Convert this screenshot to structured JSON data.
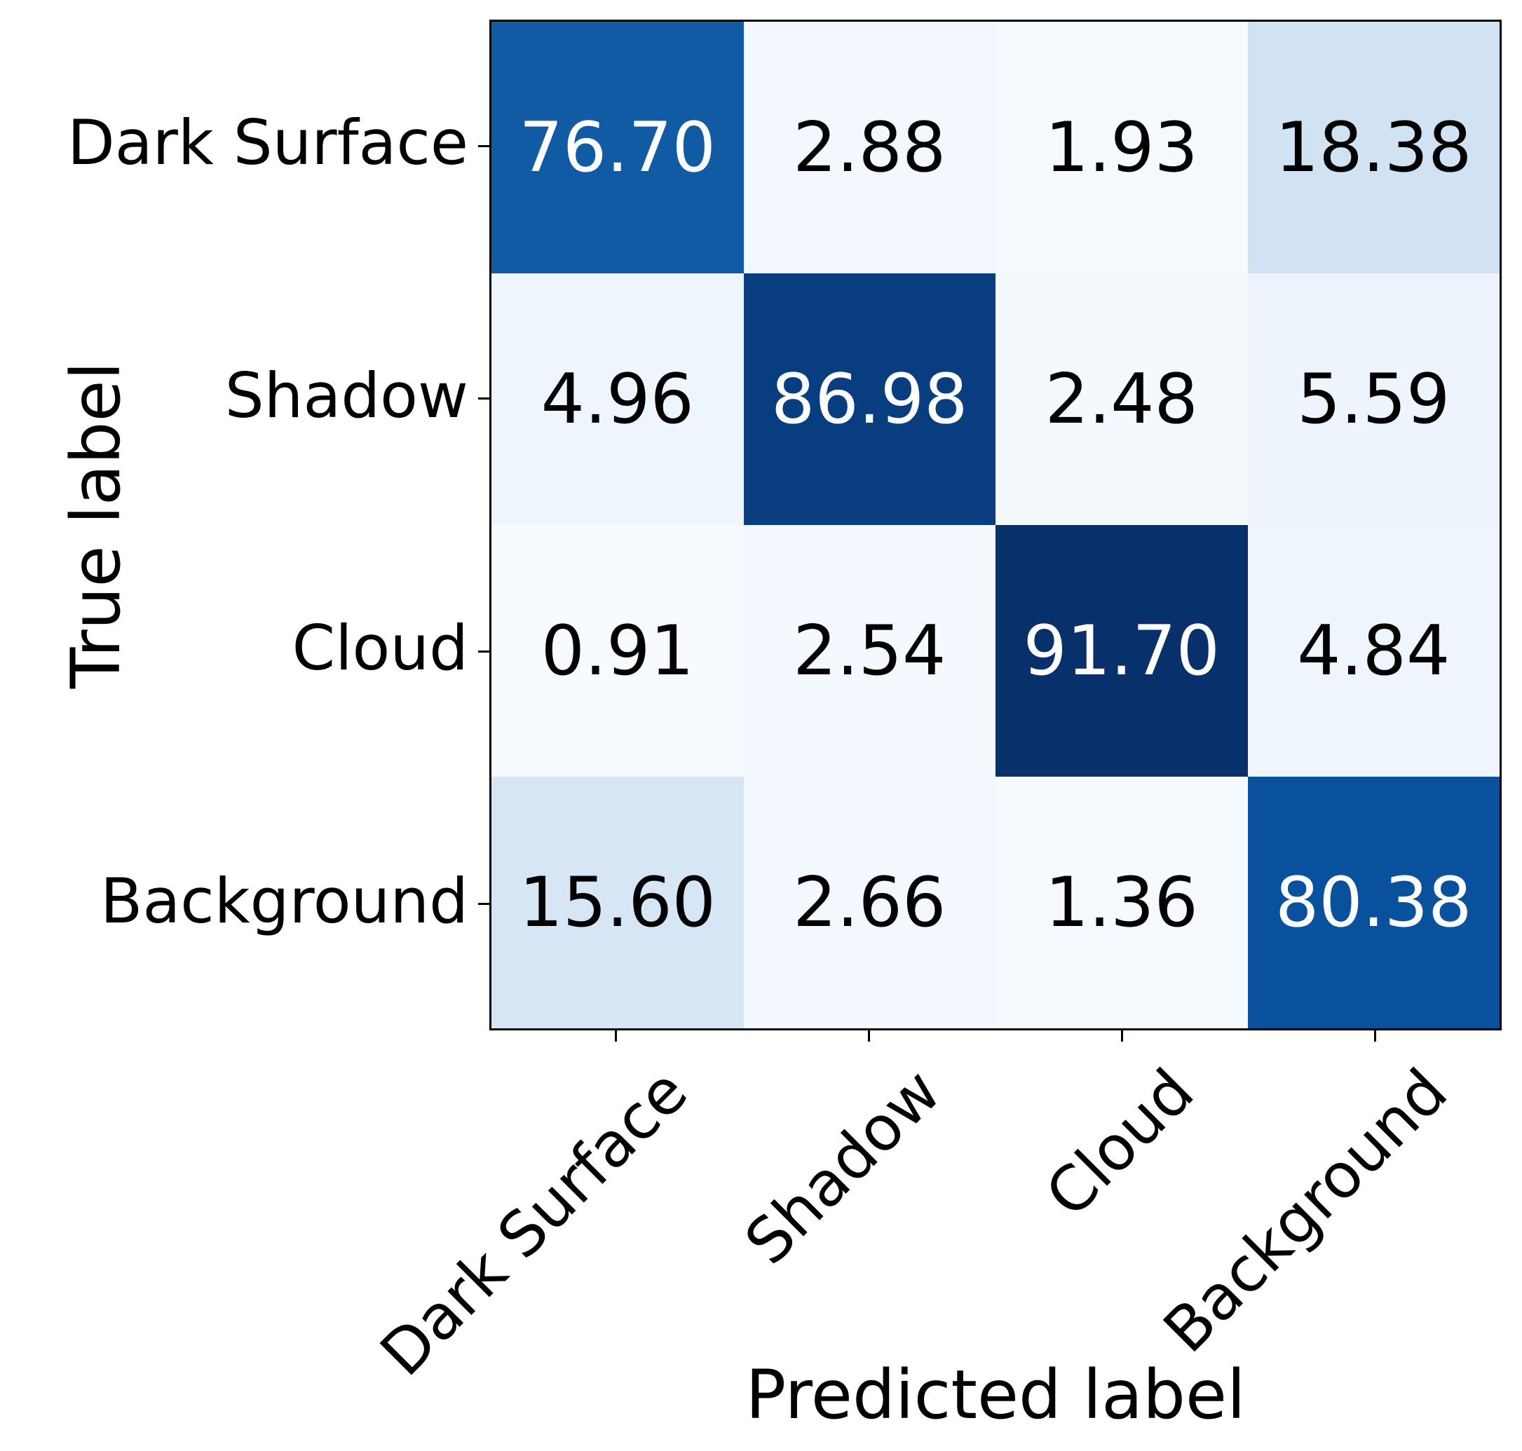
{
  "figure": {
    "background": "#ffffff"
  },
  "x_axis": {
    "title": "Predicted label",
    "tick_labels": [
      "Dark Surface",
      "Shadow",
      "Cloud",
      "Background"
    ]
  },
  "y_axis": {
    "title": "True label",
    "tick_labels": [
      "Dark Surface",
      "Shadow",
      "Cloud",
      "Background"
    ]
  },
  "matrix": {
    "display_values": [
      [
        "76.70",
        "2.88",
        "1.93",
        "18.38"
      ],
      [
        "4.96",
        "86.98",
        "2.48",
        "5.59"
      ],
      [
        "0.91",
        "2.54",
        "91.70",
        "4.84"
      ],
      [
        "15.60",
        "2.66",
        "1.36",
        "80.38"
      ]
    ],
    "cell_colors": [
      [
        "#105ba4",
        "#f3f8fe",
        "#f5fafe",
        "#d1e2f3"
      ],
      [
        "#eef5fc",
        "#083e7f",
        "#f4f9fe",
        "#edf4fc"
      ],
      [
        "#f7fbff",
        "#f3f9fe",
        "#08306b",
        "#eef5fc"
      ],
      [
        "#d7e6f5",
        "#f3f8fe",
        "#f6fafe",
        "#0a519d"
      ]
    ],
    "text_colors": [
      [
        "#ffffff",
        "#000000",
        "#000000",
        "#000000"
      ],
      [
        "#000000",
        "#ffffff",
        "#000000",
        "#000000"
      ],
      [
        "#000000",
        "#000000",
        "#ffffff",
        "#000000"
      ],
      [
        "#000000",
        "#000000",
        "#000000",
        "#ffffff"
      ]
    ]
  },
  "colors": {
    "axis_border": "#000000",
    "tick": "#000000",
    "text": "#000000",
    "diagonal_text": "#ffffff"
  },
  "chart_data": {
    "type": "heatmap",
    "title": "",
    "xlabel": "Predicted label",
    "ylabel": "True label",
    "categories_x": [
      "Dark Surface",
      "Shadow",
      "Cloud",
      "Background"
    ],
    "categories_y": [
      "Dark Surface",
      "Shadow",
      "Cloud",
      "Background"
    ],
    "values": [
      [
        76.7,
        2.88,
        1.93,
        18.38
      ],
      [
        4.96,
        86.98,
        2.48,
        5.59
      ],
      [
        0.91,
        2.54,
        91.7,
        4.84
      ],
      [
        15.6,
        2.66,
        1.36,
        80.38
      ]
    ],
    "value_range": [
      0.91,
      91.7
    ],
    "colormap": "Blues",
    "grid": false,
    "legend_position": "none",
    "annotations": "cell values shown with 2 decimals, white text on diagonal"
  }
}
